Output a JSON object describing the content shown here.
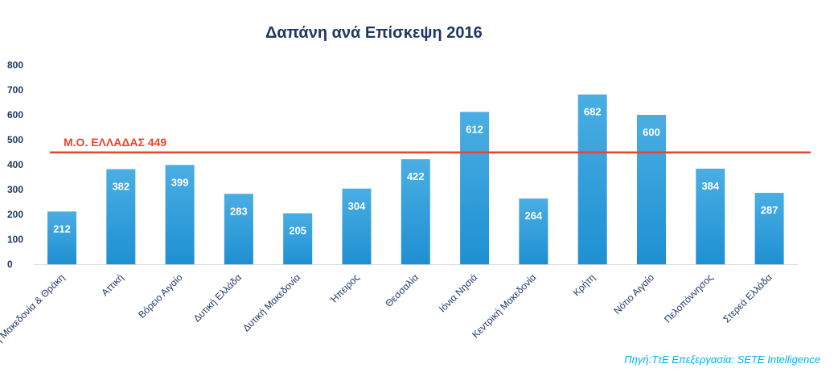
{
  "chart_data": {
    "type": "bar",
    "title": "Δαπάνη ανά Επίσκεψη 2016",
    "xlabel": "",
    "ylabel": "",
    "ylim": [
      0,
      800
    ],
    "yticks": [
      0,
      100,
      200,
      300,
      400,
      500,
      600,
      700,
      800
    ],
    "categories": [
      "Ανατολική Μακεδονία & Θράκη",
      "Αττική",
      "Βόρειο Αιγαίο",
      "Δυτική Ελλάδα",
      "Δυτική Μακεδονία",
      "Ήπειρος",
      "Θεσσαλία",
      "Ιόνια Νησιά",
      "Κεντρική Μακεδονία",
      "Κρήτη",
      "Νότιο Αιγαίο",
      "Πελοπόννησος",
      "Στερεά Ελλάδα"
    ],
    "values": [
      212,
      382,
      399,
      283,
      205,
      304,
      422,
      612,
      264,
      682,
      600,
      384,
      287
    ],
    "data_labels": true,
    "grid": false,
    "bar_color": "#2a9fdb",
    "reference_line": {
      "value": 449,
      "label": "Μ.Ο. ΕΛΛΑΔΑΣ 449",
      "color": "#e8452c"
    }
  },
  "source_note": "Πηγή:ΤτΕ Επεξεργασία: SETE Intelligence"
}
